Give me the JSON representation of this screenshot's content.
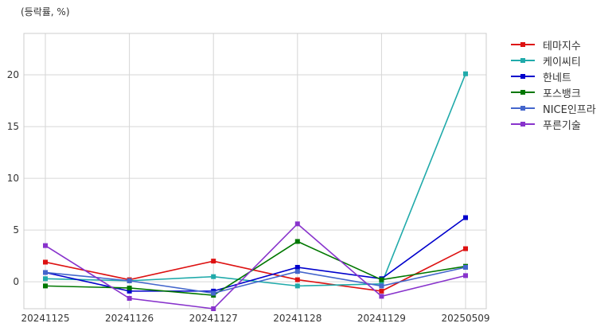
{
  "chart_data": {
    "type": "line",
    "ylabel": "(등락률, %)",
    "categories": [
      "20241125",
      "20241126",
      "20241127",
      "20241128",
      "20241129",
      "20250509"
    ],
    "yticks": [
      0,
      5,
      10,
      15,
      20
    ],
    "ylim": [
      -2.6,
      24
    ],
    "grid": true,
    "legend_position": "right",
    "series": [
      {
        "name": "테마지수",
        "color": "#dd1111",
        "values": [
          1.9,
          0.2,
          2.0,
          0.2,
          -0.9,
          3.2
        ]
      },
      {
        "name": "케이씨티",
        "color": "#20aaaa",
        "values": [
          0.3,
          0.1,
          0.5,
          -0.4,
          -0.2,
          20.1
        ]
      },
      {
        "name": "한네트",
        "color": "#0000cc",
        "values": [
          0.9,
          -0.9,
          -0.9,
          1.4,
          0.3,
          6.2
        ]
      },
      {
        "name": "포스뱅크",
        "color": "#007700",
        "values": [
          -0.4,
          -0.6,
          -1.3,
          3.9,
          0.2,
          1.5
        ]
      },
      {
        "name": "NICE인프라",
        "color": "#4466cc",
        "values": [
          0.9,
          0.1,
          -1.1,
          1.0,
          -0.4,
          1.4
        ]
      },
      {
        "name": "푸른기술",
        "color": "#8833cc",
        "values": [
          3.5,
          -1.6,
          -2.6,
          5.6,
          -1.4,
          0.6
        ]
      }
    ]
  }
}
